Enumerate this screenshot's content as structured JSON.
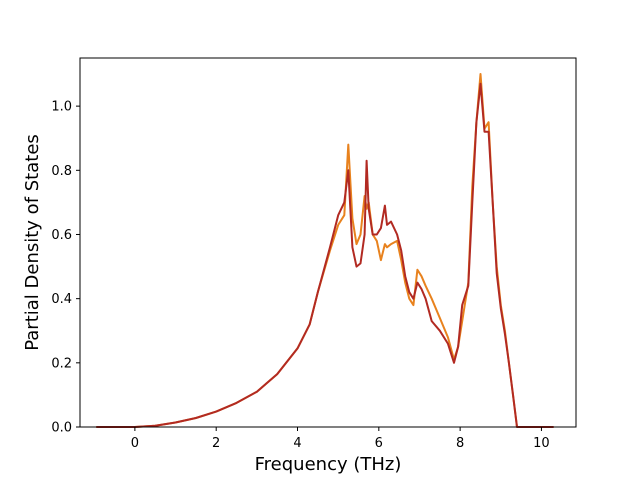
{
  "chart_data": {
    "type": "line",
    "title": "",
    "xlabel": "Frequency (THz)",
    "ylabel": "Partial Density of States",
    "xlim": [
      -1.35,
      10.85
    ],
    "ylim": [
      0.0,
      1.15
    ],
    "xticks": [
      0,
      2,
      4,
      6,
      8,
      10
    ],
    "xtick_labels": [
      "0",
      "2",
      "4",
      "6",
      "8",
      "10"
    ],
    "yticks": [
      0.0,
      0.2,
      0.4,
      0.6,
      0.8,
      1.0
    ],
    "ytick_labels": [
      "0.0",
      "0.2",
      "0.4",
      "0.6",
      "0.8",
      "1.0"
    ],
    "grid": false,
    "legend": "none",
    "series": [
      {
        "color": "#e8821e",
        "x": [
          -0.95,
          0.0,
          0.5,
          1.0,
          1.5,
          2.0,
          2.5,
          3.0,
          3.5,
          4.0,
          4.3,
          4.5,
          4.8,
          5.0,
          5.15,
          5.25,
          5.35,
          5.45,
          5.55,
          5.65,
          5.7,
          5.75,
          5.85,
          5.95,
          6.05,
          6.15,
          6.2,
          6.3,
          6.45,
          6.55,
          6.65,
          6.75,
          6.85,
          6.95,
          7.05,
          7.15,
          7.3,
          7.5,
          7.7,
          7.85,
          7.95,
          8.05,
          8.2,
          8.3,
          8.4,
          8.5,
          8.6,
          8.7,
          8.8,
          8.9,
          9.0,
          9.1,
          9.2,
          9.3,
          9.4,
          9.5,
          10.3
        ],
        "y": [
          0.0,
          0.0,
          0.004,
          0.014,
          0.028,
          0.048,
          0.075,
          0.11,
          0.165,
          0.245,
          0.32,
          0.42,
          0.55,
          0.63,
          0.66,
          0.88,
          0.65,
          0.57,
          0.6,
          0.72,
          0.68,
          0.7,
          0.6,
          0.58,
          0.52,
          0.57,
          0.56,
          0.57,
          0.58,
          0.52,
          0.45,
          0.4,
          0.38,
          0.49,
          0.47,
          0.44,
          0.4,
          0.34,
          0.28,
          0.21,
          0.25,
          0.33,
          0.45,
          0.75,
          0.95,
          1.1,
          0.93,
          0.95,
          0.7,
          0.5,
          0.38,
          0.3,
          0.2,
          0.1,
          0.0,
          0.0,
          0.0
        ]
      },
      {
        "color": "#b22a22",
        "x": [
          -0.95,
          0.0,
          0.5,
          1.0,
          1.5,
          2.0,
          2.5,
          3.0,
          3.5,
          4.0,
          4.3,
          4.5,
          4.8,
          5.0,
          5.15,
          5.25,
          5.35,
          5.45,
          5.55,
          5.65,
          5.7,
          5.75,
          5.85,
          5.95,
          6.05,
          6.15,
          6.2,
          6.3,
          6.45,
          6.55,
          6.65,
          6.75,
          6.85,
          6.95,
          7.05,
          7.15,
          7.3,
          7.5,
          7.7,
          7.85,
          7.95,
          8.05,
          8.2,
          8.3,
          8.4,
          8.5,
          8.6,
          8.7,
          8.8,
          8.9,
          9.0,
          9.1,
          9.2,
          9.3,
          9.4,
          9.5,
          10.3
        ],
        "y": [
          0.0,
          0.0,
          0.004,
          0.014,
          0.028,
          0.048,
          0.075,
          0.11,
          0.165,
          0.245,
          0.32,
          0.42,
          0.56,
          0.66,
          0.7,
          0.8,
          0.56,
          0.5,
          0.51,
          0.6,
          0.83,
          0.68,
          0.6,
          0.6,
          0.62,
          0.69,
          0.63,
          0.64,
          0.6,
          0.55,
          0.47,
          0.42,
          0.4,
          0.45,
          0.43,
          0.4,
          0.33,
          0.3,
          0.26,
          0.2,
          0.25,
          0.38,
          0.44,
          0.7,
          0.95,
          1.07,
          0.92,
          0.92,
          0.7,
          0.48,
          0.37,
          0.29,
          0.2,
          0.1,
          0.0,
          0.0,
          0.0
        ]
      }
    ]
  }
}
